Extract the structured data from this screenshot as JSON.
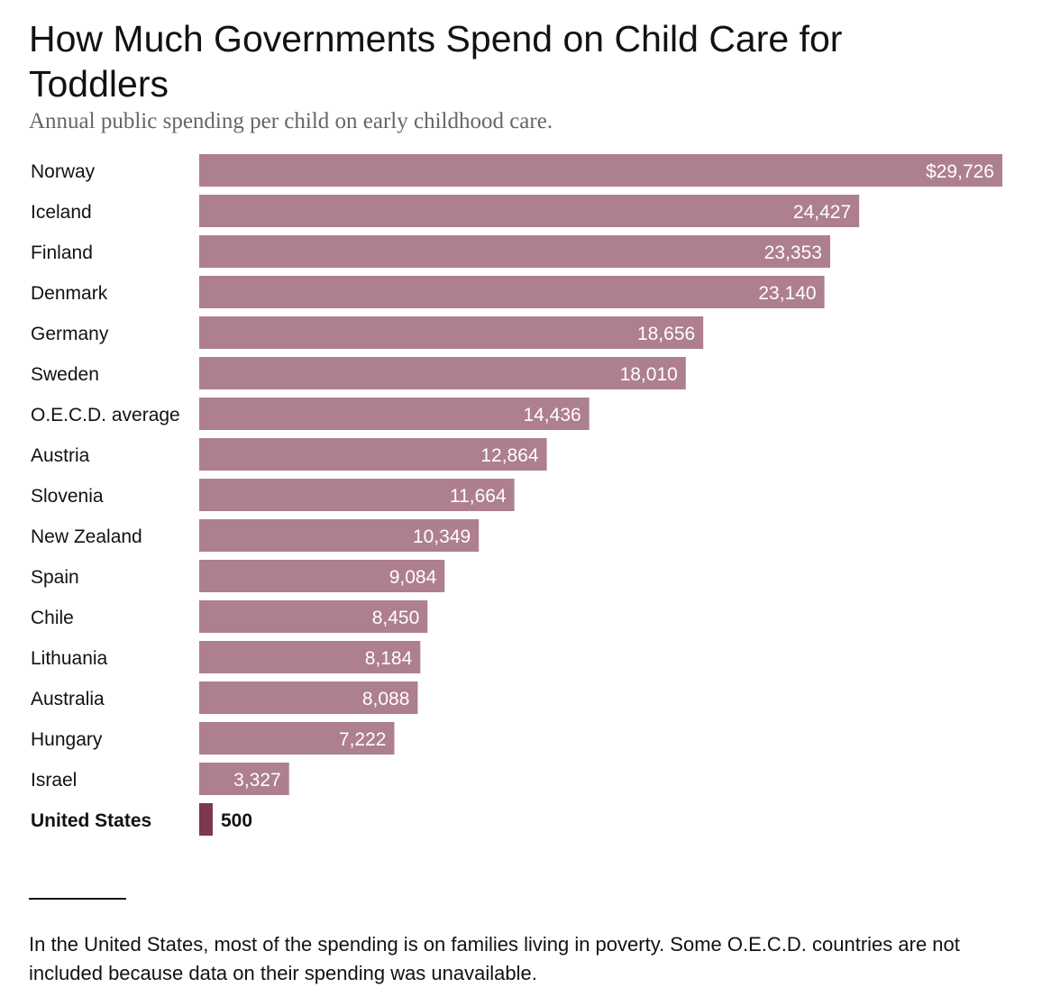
{
  "title": "How Much Governments Spend on Child Care for Toddlers",
  "subtitle": "Annual public spending per child on early childhood care.",
  "note": "In the United States, most of the spending is on families living in poverty. Some O.E.C.D. countries are not included because data on their spending was unavailable.",
  "colors": {
    "bar": "#ae7f8e",
    "highlight_bar": "#7c3753",
    "bar_label": "#ffffff",
    "text": "#121212"
  },
  "chart_data": {
    "type": "bar",
    "orientation": "horizontal",
    "categories": [
      "Norway",
      "Iceland",
      "Finland",
      "Denmark",
      "Germany",
      "Sweden",
      "O.E.C.D. average",
      "Austria",
      "Slovenia",
      "New Zealand",
      "Spain",
      "Chile",
      "Lithuania",
      "Australia",
      "Hungary",
      "Israel",
      "United States"
    ],
    "values": [
      29726,
      24427,
      23353,
      23140,
      18656,
      18010,
      14436,
      12864,
      11664,
      10349,
      9084,
      8450,
      8184,
      8088,
      7222,
      3327,
      500
    ],
    "data_labels": [
      "$29,726",
      "24,427",
      "23,353",
      "23,140",
      "18,656",
      "18,010",
      "14,436",
      "12,864",
      "11,664",
      "10,349",
      "9,084",
      "8,450",
      "8,184",
      "8,088",
      "7,222",
      "3,327",
      "500"
    ],
    "highlight": "United States",
    "xlim": [
      0,
      29726
    ],
    "grid": false,
    "title": "How Much Governments Spend on Child Care for Toddlers",
    "subtitle": "Annual public spending per child on early childhood care."
  }
}
